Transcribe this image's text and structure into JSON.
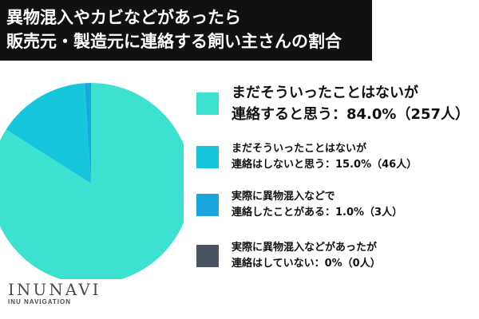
{
  "title_lines": [
    "異物混入やカビなどがあったら",
    "販売元・製造元に連絡する飼い主さんの割合"
  ],
  "brand": {
    "name": "INUNAVI",
    "sub": "INU NAVIGATION"
  },
  "chart_data": {
    "type": "pie",
    "start": "12 o'clock, clockwise",
    "slices": [
      {
        "label_lines": [
          "まだそういったことはないが",
          "連絡すると思う：84.0%（257人）"
        ],
        "value": 84.0,
        "count": 257,
        "color": "#3de1d0"
      },
      {
        "label_lines": [
          "まだそういったことはないが",
          "連絡はしないと思う：15.0%（46人）"
        ],
        "value": 15.0,
        "count": 46,
        "color": "#15c6dc"
      },
      {
        "label_lines": [
          "実際に異物混入などで",
          "連絡したことがある：1.0%（3人）"
        ],
        "value": 1.0,
        "count": 3,
        "color": "#18a6dc"
      },
      {
        "label_lines": [
          "実際に異物混入などがあったが",
          "連絡はしていない：0%（0人）"
        ],
        "value": 0.0,
        "count": 0,
        "color": "#4a5360"
      }
    ]
  }
}
